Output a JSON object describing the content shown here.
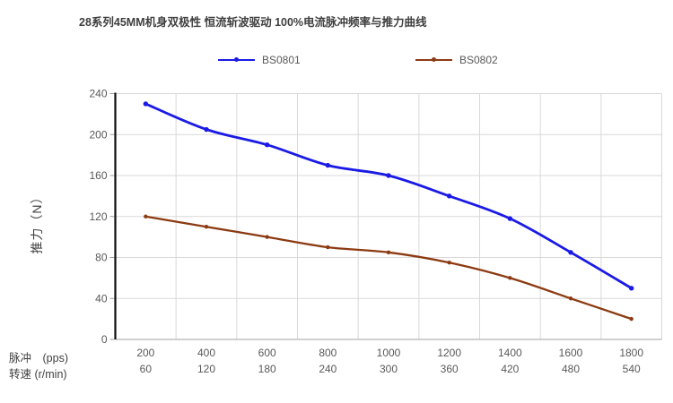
{
  "title": "28系列45MM机身双极性 恒流斩波驱动 100%电流脉冲频率与推力曲线",
  "legend": [
    {
      "label": "BS0801",
      "color": "#1a1ae6"
    },
    {
      "label": "BS0802",
      "color": "#8c3a12"
    }
  ],
  "y_axis": {
    "title": "推力（N）",
    "ticks": [
      0,
      40,
      80,
      120,
      160,
      200,
      240
    ],
    "min": 0,
    "max": 240
  },
  "x_axis": {
    "row1_label": "脉冲　(pps)",
    "row2_label": "转速 (r/min)",
    "row1": [
      200,
      400,
      600,
      800,
      1000,
      1200,
      1400,
      1600,
      1800
    ],
    "row2": [
      60,
      120,
      180,
      240,
      300,
      360,
      420,
      480,
      540
    ]
  },
  "colors": {
    "gridline": "#d9d9d9",
    "y_axis_line": "#0d0d0d",
    "x_axis_line": "#b3b3b3",
    "tick_mark": "#9e9e9e",
    "tick_label": "#595959",
    "title_text": "#3f3f3f"
  },
  "chart_data": {
    "type": "line",
    "title": "28系列45MM机身双极性 恒流斩波驱动 100%电流脉冲频率与推力曲线",
    "xlabel_row1": "脉冲　(pps)",
    "xlabel_row2": "转速 (r/min)",
    "ylabel": "推力（N）",
    "x_pps": [
      200,
      400,
      600,
      800,
      1000,
      1200,
      1400,
      1600,
      1800
    ],
    "x_rpm": [
      60,
      120,
      180,
      240,
      300,
      360,
      420,
      480,
      540
    ],
    "series": [
      {
        "name": "BS0801",
        "color": "#1a1ae6",
        "values": [
          230,
          205,
          190,
          170,
          160,
          140,
          118,
          85,
          50
        ]
      },
      {
        "name": "BS0802",
        "color": "#8c3a12",
        "values": [
          120,
          110,
          100,
          90,
          85,
          75,
          60,
          40,
          20
        ]
      }
    ],
    "ylim": [
      0,
      240
    ],
    "y_step": 40,
    "grid": true,
    "smoothed_lines": true,
    "legend_position": "top"
  }
}
